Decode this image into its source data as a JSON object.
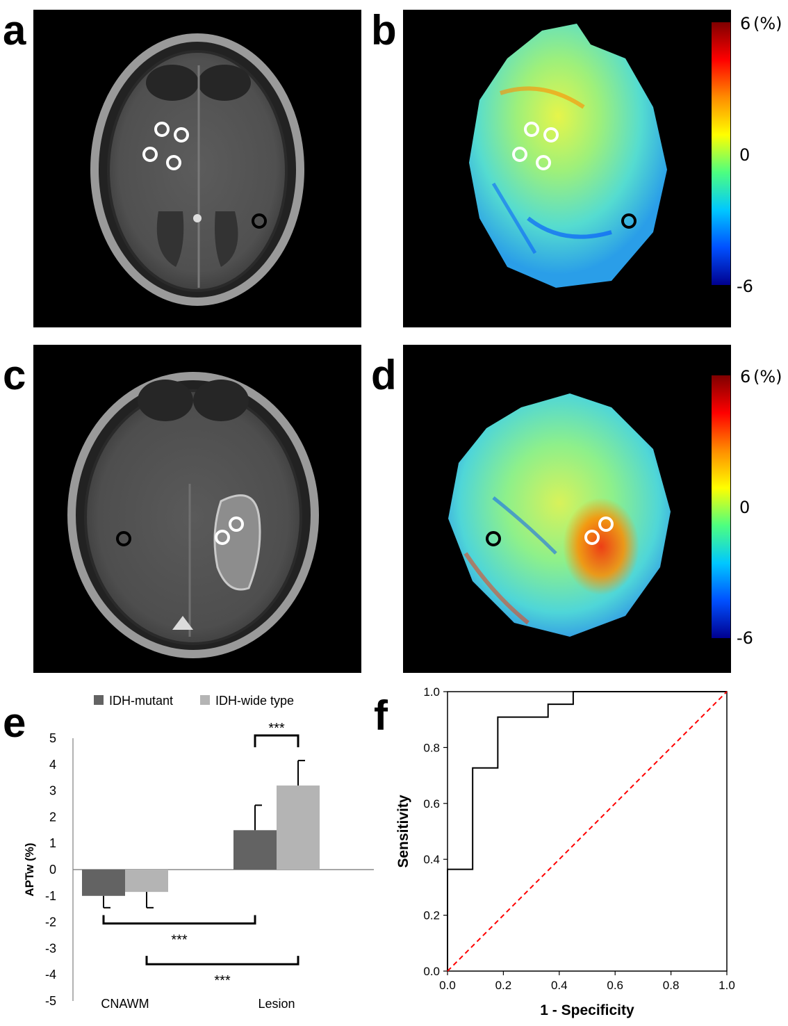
{
  "panel_labels": [
    "a",
    "b",
    "c",
    "d",
    "e",
    "f"
  ],
  "colorbar": {
    "top": "6",
    "unit": "(%)",
    "mid": "0",
    "bottom": "-6",
    "colors": [
      "#7f0000",
      "#ff0000",
      "#ff8c00",
      "#ffff00",
      "#4dff80",
      "#00c8ff",
      "#0050ff",
      "#00008f"
    ]
  },
  "roi_colors": {
    "lesion": "#ffffff",
    "control": "#000000"
  },
  "chart_data": [
    {
      "panel": "e",
      "type": "bar",
      "categories": [
        "CNAWM",
        "Lesion"
      ],
      "ylabel": "APTw (%)",
      "ylim": [
        -5,
        5
      ],
      "yticks": [
        "5",
        "4",
        "3",
        "2",
        "1",
        "0",
        "-1",
        "-2",
        "-3",
        "-4",
        "-5"
      ],
      "legend_position": "top",
      "series": [
        {
          "name": "IDH-mutant",
          "color": "#636363",
          "values": [
            -1.0,
            1.5
          ],
          "errors": [
            0.45,
            0.95
          ]
        },
        {
          "name": "IDH-wide type",
          "color": "#b4b4b4",
          "values": [
            -0.85,
            3.2
          ],
          "errors": [
            0.6,
            0.95
          ]
        }
      ],
      "significance": [
        "***",
        "***",
        "***"
      ]
    },
    {
      "panel": "f",
      "type": "line",
      "xlabel": "1 - Specificity",
      "ylabel": "Sensitivity",
      "xlim": [
        0,
        1
      ],
      "ylim": [
        0,
        1
      ],
      "xticks": [
        "0.0",
        "0.2",
        "0.4",
        "0.6",
        "0.8",
        "1.0"
      ],
      "yticks": [
        "0.0",
        "0.2",
        "0.4",
        "0.6",
        "0.8",
        "1.0"
      ],
      "series": [
        {
          "color": "#000000",
          "style": "step",
          "x": [
            0,
            0,
            0.09,
            0.09,
            0.18,
            0.18,
            0.36,
            0.36,
            0.45,
            0.45,
            1.0
          ],
          "y": [
            0,
            0.364,
            0.364,
            0.727,
            0.727,
            0.909,
            0.909,
            0.955,
            0.955,
            1.0,
            1.0
          ]
        },
        {
          "color": "#ff0000",
          "style": "dashed",
          "x": [
            0,
            1
          ],
          "y": [
            0,
            1
          ]
        }
      ]
    }
  ]
}
